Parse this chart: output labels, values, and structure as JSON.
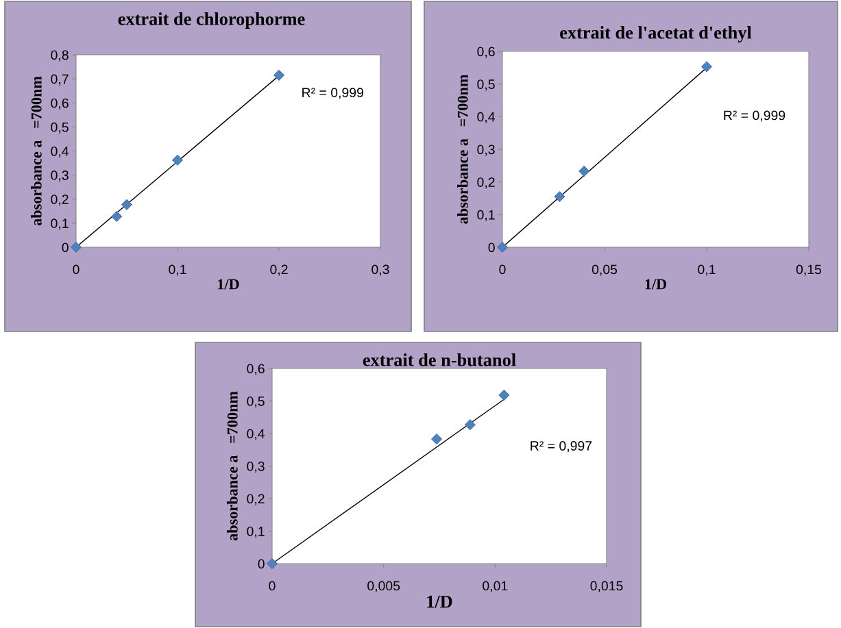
{
  "chart_data": [
    {
      "type": "scatter",
      "title": "extrait de chlorophorme",
      "xlabel": "1/D",
      "ylabel": "absorbance a   =700nm",
      "grid": false,
      "legend": false,
      "xlim": [
        0,
        0.3
      ],
      "xticks": [
        0,
        {
          "value": 0.1,
          "label": "0,1"
        },
        {
          "value": 0.2,
          "label": "0,2"
        },
        {
          "value": 0.3,
          "label": "0,3"
        }
      ],
      "ylim": [
        0,
        0.8
      ],
      "yticks": [
        0,
        {
          "value": 0.1,
          "label": "0,1"
        },
        {
          "value": 0.2,
          "label": "0,2"
        },
        {
          "value": 0.3,
          "label": "0,3"
        },
        {
          "value": 0.4,
          "label": "0,4"
        },
        {
          "value": 0.5,
          "label": "0,5"
        },
        {
          "value": 0.6,
          "label": "0,6"
        },
        {
          "value": 0.7,
          "label": "0,7"
        },
        {
          "value": 0.8,
          "label": "0,8"
        }
      ],
      "annotations": [
        "R² = 0,999"
      ],
      "series": [
        {
          "color": "#4f81bd",
          "marker": "diamond",
          "x": [
            0,
            0.04,
            0.05,
            0.1,
            0.2
          ],
          "values": [
            0,
            0.128,
            0.177,
            0.362,
            0.715
          ]
        },
        {
          "type": "line",
          "marker": "none",
          "color": "#000000",
          "x": [
            0,
            0.2
          ],
          "values": [
            0,
            0.713
          ]
        }
      ]
    },
    {
      "type": "scatter",
      "title": "extrait de l'acetat d'ethyl",
      "xlabel": "1/D",
      "ylabel": "absorbance a   =700nm",
      "grid": false,
      "legend": false,
      "xlim": [
        0,
        0.15
      ],
      "xticks": [
        0,
        {
          "value": 0.05,
          "label": "0,05"
        },
        {
          "value": 0.1,
          "label": "0,1"
        },
        {
          "value": 0.15,
          "label": "0,15"
        }
      ],
      "ylim": [
        0,
        0.6
      ],
      "yticks": [
        0,
        {
          "value": 0.1,
          "label": "0,1"
        },
        {
          "value": 0.2,
          "label": "0,2"
        },
        {
          "value": 0.3,
          "label": "0,3"
        },
        {
          "value": 0.4,
          "label": "0,4"
        },
        {
          "value": 0.5,
          "label": "0,5"
        },
        {
          "value": 0.6,
          "label": "0,6"
        }
      ],
      "annotations": [
        "R² = 0,999"
      ],
      "series": [
        {
          "color": "#4f81bd",
          "marker": "diamond",
          "x": [
            0,
            0.028,
            0.04,
            0.1
          ],
          "values": [
            0,
            0.155,
            0.233,
            0.553
          ]
        },
        {
          "type": "line",
          "marker": "none",
          "color": "#000000",
          "x": [
            0,
            0.1
          ],
          "values": [
            0,
            0.55
          ]
        }
      ]
    },
    {
      "type": "scatter",
      "title": "extrait de n-butanol",
      "xlabel": "1/D",
      "ylabel": "absorbance a   =700nm",
      "grid": false,
      "legend": false,
      "xlim": [
        0,
        0.015
      ],
      "xticks": [
        0,
        {
          "value": 0.005,
          "label": "0,005"
        },
        {
          "value": 0.01,
          "label": "0,01"
        },
        {
          "value": 0.015,
          "label": "0,015"
        }
      ],
      "ylim": [
        0,
        0.6
      ],
      "yticks": [
        0,
        {
          "value": 0.1,
          "label": "0,1"
        },
        {
          "value": 0.2,
          "label": "0,2"
        },
        {
          "value": 0.3,
          "label": "0,3"
        },
        {
          "value": 0.4,
          "label": "0,4"
        },
        {
          "value": 0.5,
          "label": "0,5"
        },
        {
          "value": 0.6,
          "label": "0,6"
        }
      ],
      "annotations": [
        "R² = 0,997"
      ],
      "series": [
        {
          "color": "#4f81bd",
          "marker": "diamond",
          "x": [
            0,
            0.00738,
            0.00888,
            0.0104
          ],
          "values": [
            0,
            0.383,
            0.427,
            0.518
          ]
        },
        {
          "type": "line",
          "marker": "none",
          "color": "#000000",
          "x": [
            0,
            0.0104
          ],
          "values": [
            0,
            0.505
          ]
        }
      ]
    }
  ]
}
